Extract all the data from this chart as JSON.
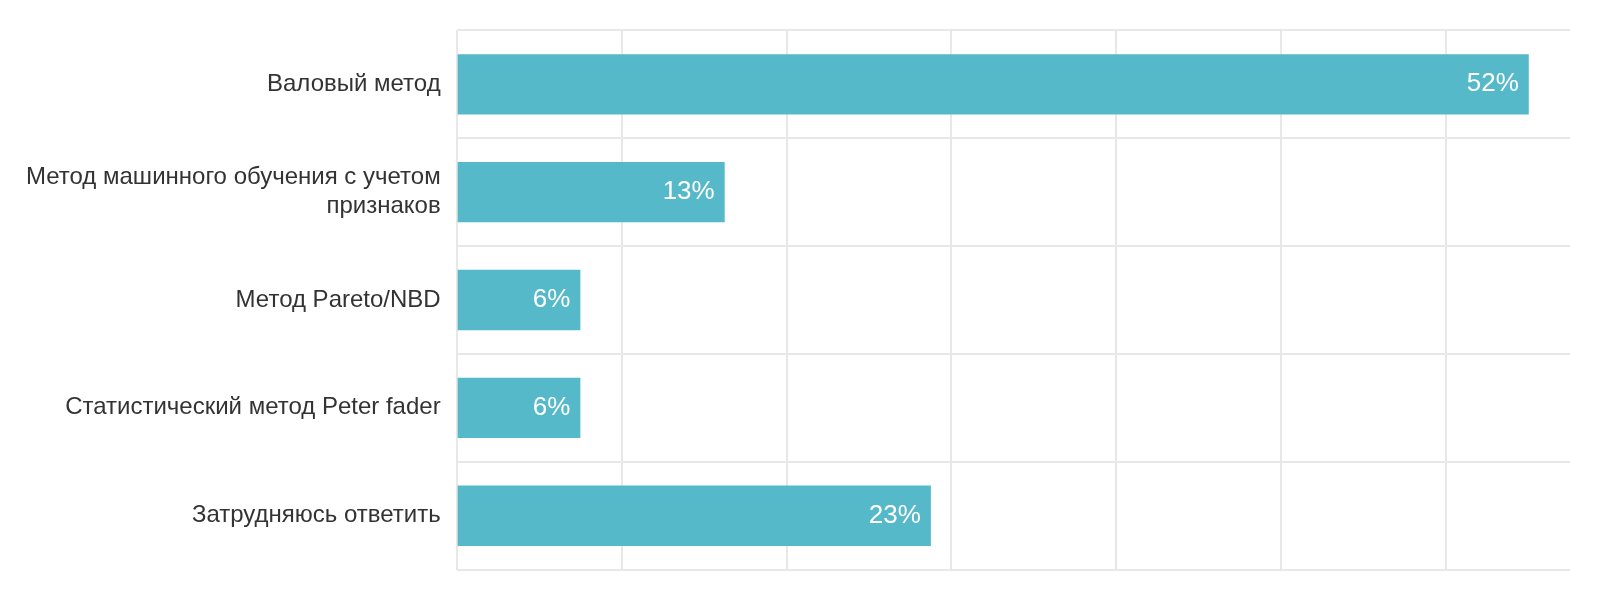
{
  "chart_data": {
    "type": "bar",
    "orientation": "horizontal",
    "categories": [
      "Валовый метод",
      "Метод машинного обучения с учетом признаков",
      "Метод Pareto/NBD",
      "Статистический метод Peter fader",
      "Затрудняюсь ответить"
    ],
    "values": [
      52,
      13,
      6,
      6,
      23
    ],
    "value_labels": [
      "52%",
      "13%",
      "6%",
      "6%",
      "23%"
    ],
    "color": "#55b9c9",
    "xlim": [
      0,
      54
    ],
    "xticks": [
      {
        "value": 0,
        "label": null
      },
      {
        "value": 8,
        "label": null
      },
      {
        "value": 16,
        "label": null
      },
      {
        "value": 24,
        "label": null
      },
      {
        "value": 32,
        "label": null
      },
      {
        "value": 40,
        "label": null
      },
      {
        "value": 48,
        "label": null
      }
    ],
    "tick_labels": "y",
    "grid": true,
    "legend": false
  }
}
